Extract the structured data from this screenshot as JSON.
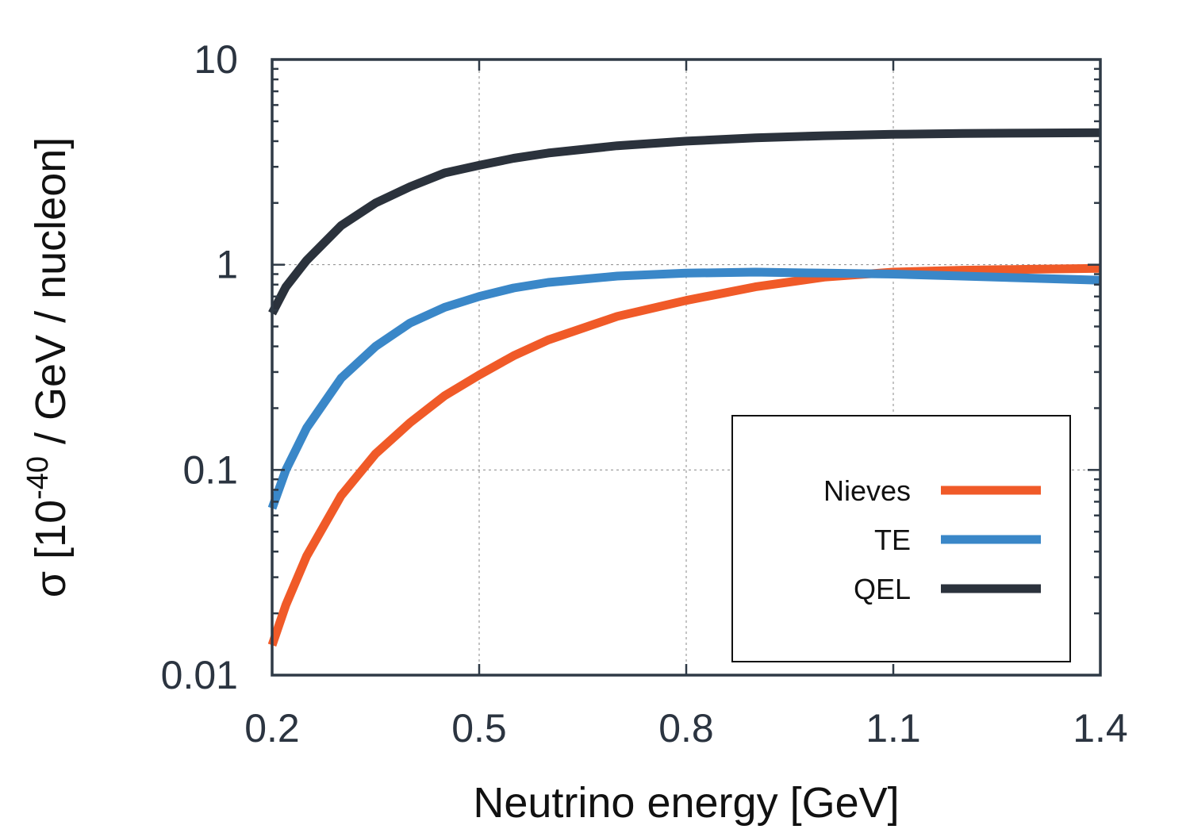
{
  "chart_data": {
    "type": "line",
    "xlabel": "Neutrino energy [GeV]",
    "ylabel": {
      "prefix": "σ [10",
      "exponent": "-40",
      "suffix": " / GeV / nucleon]"
    },
    "xlim": [
      0.2,
      1.4
    ],
    "ylim": [
      0.01,
      10
    ],
    "y_scale": "log",
    "x_ticks": [
      0.2,
      0.5,
      0.8,
      1.1,
      1.4
    ],
    "x_tick_labels": [
      "0.2",
      "0.5",
      "0.8",
      "1.1",
      "1.4"
    ],
    "y_ticks": [
      0.01,
      0.1,
      1,
      10
    ],
    "y_tick_labels": [
      "0.01",
      "0.1",
      "1",
      "10"
    ],
    "grid": true,
    "legend_position": "bottom-right",
    "series": [
      {
        "name": "Nieves",
        "color": "#f05a28",
        "x": [
          0.2,
          0.22,
          0.25,
          0.3,
          0.35,
          0.4,
          0.45,
          0.5,
          0.55,
          0.6,
          0.7,
          0.8,
          0.9,
          1.0,
          1.1,
          1.2,
          1.3,
          1.4
        ],
        "y": [
          0.014,
          0.022,
          0.038,
          0.075,
          0.12,
          0.17,
          0.23,
          0.29,
          0.36,
          0.43,
          0.56,
          0.67,
          0.78,
          0.87,
          0.92,
          0.94,
          0.95,
          0.96
        ]
      },
      {
        "name": "TE",
        "color": "#3a87c8",
        "x": [
          0.2,
          0.22,
          0.25,
          0.3,
          0.35,
          0.4,
          0.45,
          0.5,
          0.55,
          0.6,
          0.7,
          0.8,
          0.9,
          1.0,
          1.1,
          1.2,
          1.3,
          1.4
        ],
        "y": [
          0.065,
          0.1,
          0.16,
          0.28,
          0.4,
          0.52,
          0.62,
          0.7,
          0.77,
          0.82,
          0.88,
          0.91,
          0.92,
          0.91,
          0.9,
          0.88,
          0.86,
          0.84
        ]
      },
      {
        "name": "QEL",
        "color": "#2b323c",
        "x": [
          0.2,
          0.22,
          0.25,
          0.3,
          0.35,
          0.4,
          0.45,
          0.5,
          0.55,
          0.6,
          0.7,
          0.8,
          0.9,
          1.0,
          1.1,
          1.2,
          1.3,
          1.4
        ],
        "y": [
          0.58,
          0.78,
          1.05,
          1.55,
          2.0,
          2.4,
          2.8,
          3.05,
          3.3,
          3.5,
          3.8,
          4.0,
          4.15,
          4.25,
          4.32,
          4.36,
          4.38,
          4.4
        ]
      }
    ]
  }
}
